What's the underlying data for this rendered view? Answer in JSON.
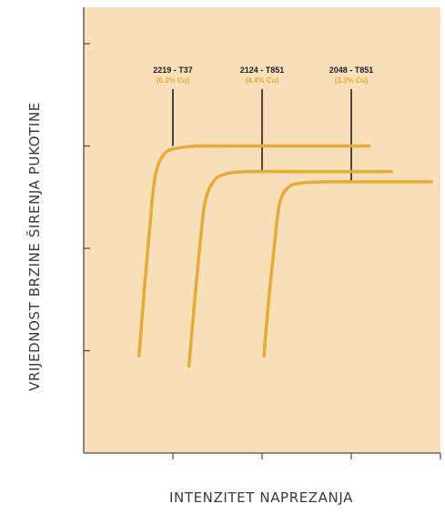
{
  "colors": {
    "plot_background": "#f9deba",
    "curve": "#e9a936",
    "axis": "#4a4a4a",
    "leader": "#1f1f1f"
  },
  "chart_data": {
    "type": "line",
    "title": "",
    "xlabel": "INTENZITET NAPREZANJA",
    "ylabel": "VRIJEDNOST BRZINE ŠIRENJA PUKOTINE",
    "grid": false,
    "xlim": [
      0,
      4
    ],
    "ylim": [
      0,
      4
    ],
    "x_ticks": [
      1,
      2,
      3,
      4
    ],
    "y_ticks": [
      1,
      2,
      3,
      4
    ],
    "series": [
      {
        "name": "2219 - T37",
        "sub": "(6.3% Cu)",
        "x": [
          0.62,
          0.68,
          0.74,
          0.8,
          0.9,
          1.05,
          1.3,
          1.7,
          2.3,
          2.9,
          3.2
        ],
        "y": [
          0.95,
          1.6,
          2.2,
          2.7,
          2.92,
          2.98,
          3.0,
          3.0,
          3.0,
          3.0,
          3.0
        ],
        "label_x": 1.0,
        "leader_x": 1.0
      },
      {
        "name": "2124 - T851",
        "sub": "(4.4% Cu)",
        "x": [
          1.18,
          1.24,
          1.3,
          1.36,
          1.46,
          1.6,
          1.85,
          2.3,
          2.8,
          3.2,
          3.45
        ],
        "y": [
          0.85,
          1.45,
          2.0,
          2.45,
          2.66,
          2.73,
          2.75,
          2.75,
          2.75,
          2.75,
          2.75
        ],
        "label_x": 2.0,
        "leader_x": 2.0
      },
      {
        "name": "2048 - T851",
        "sub": "(3.3% Cu)",
        "x": [
          2.02,
          2.08,
          2.14,
          2.2,
          2.3,
          2.45,
          2.7,
          3.1,
          3.5,
          3.9
        ],
        "y": [
          0.95,
          1.55,
          2.05,
          2.45,
          2.6,
          2.64,
          2.65,
          2.65,
          2.65,
          2.65
        ],
        "label_x": 3.0,
        "leader_x": 3.0
      }
    ]
  }
}
